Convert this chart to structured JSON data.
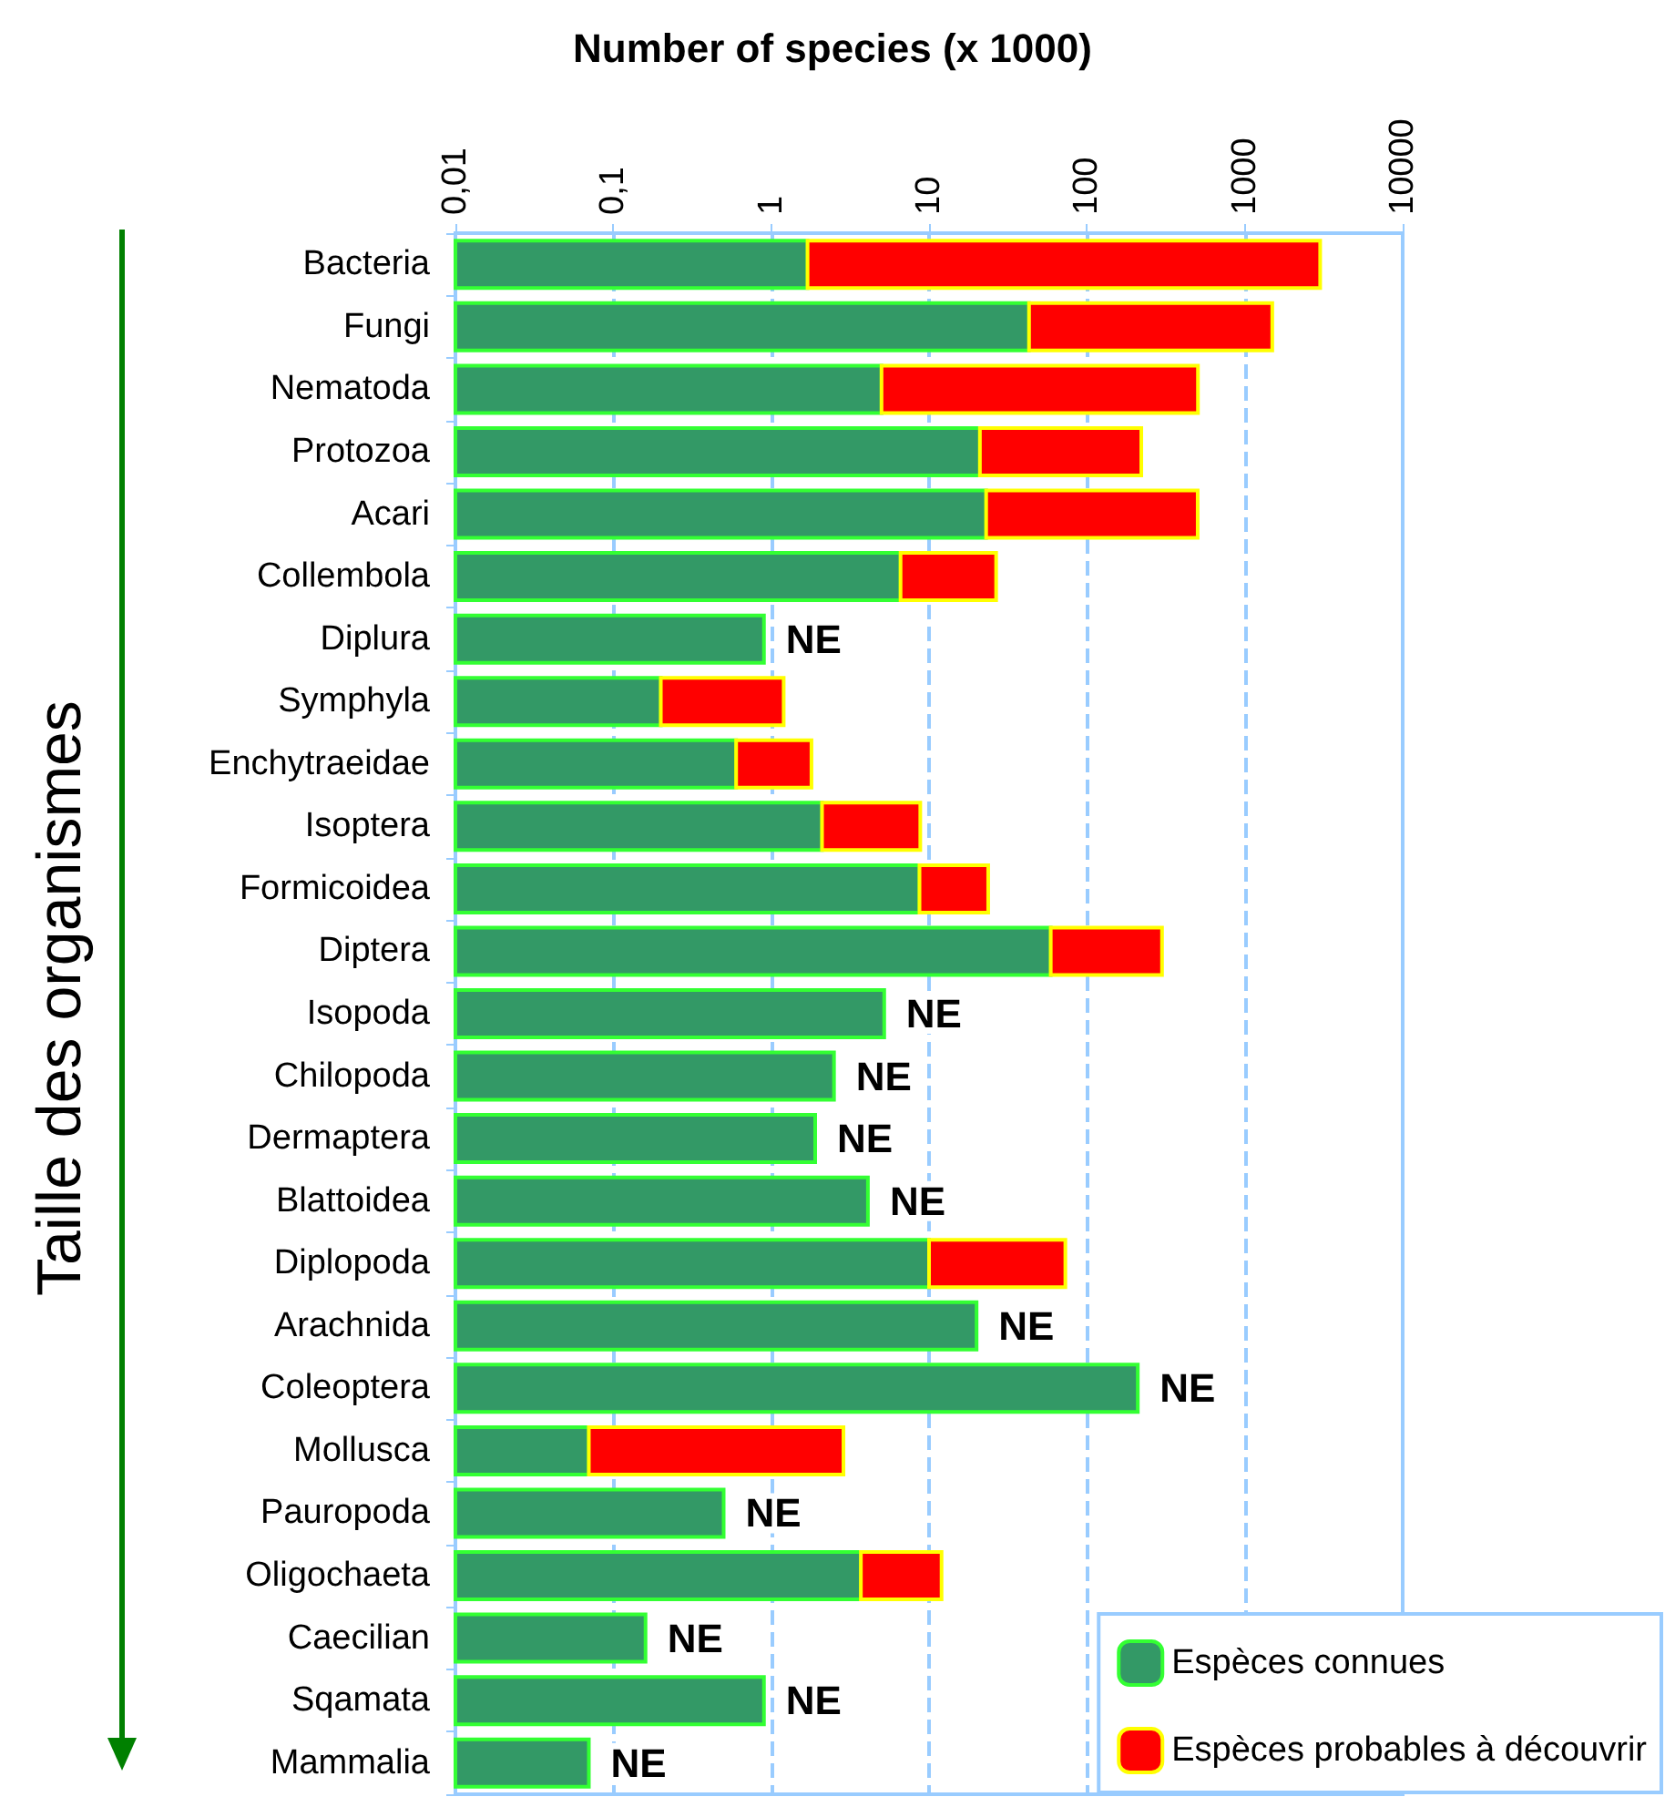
{
  "chart_data": {
    "type": "bar",
    "orientation": "horizontal",
    "stacked": true,
    "log": "x",
    "grid": "x",
    "legend": "bottom right",
    "xlabel": "Number of species (x 1000)",
    "ylabel": "Taille des organismes",
    "categories": [
      "Bacteria",
      "Fungi",
      "Nematoda",
      "Protozoa",
      "Acari",
      "Collembola",
      "Diplura",
      "Symphyla",
      "Enchytraeidae",
      "Isoptera",
      "Formicoidea",
      "Diptera",
      "Isopoda",
      "Chilopoda",
      "Dermaptera",
      "Blattoidea",
      "Diplopoda",
      "Arachnida",
      "Coleoptera",
      "Mollusca",
      "Pauropoda",
      "Oligochaeta",
      "Caecilian",
      "Sqamata",
      "Mammalia"
    ],
    "xlim": [
      0.01,
      10000
    ],
    "xticks": [
      {
        "value": 0.01,
        "label": "0,01"
      },
      {
        "value": 0.1,
        "label": "0,1"
      },
      1,
      10,
      100,
      1000,
      10000
    ],
    "series": [
      {
        "name": "Espèces connues",
        "color": "#339966",
        "values": [
          1.7,
          43,
          5,
          21,
          23,
          6.6,
          0.9,
          0.2,
          0.6,
          2.1,
          8.7,
          59,
          5.2,
          2.5,
          1.9,
          4.1,
          10,
          20,
          210,
          0.07,
          0.5,
          3.7,
          0.16,
          0.9,
          0.07
        ]
      },
      {
        "name": "Espèces probables à découvrir",
        "color": "#ff0000",
        "values": [
          3000,
          1450,
          500,
          200,
          480,
          20,
          null,
          1,
          1.2,
          6.7,
          15,
          240,
          null,
          null,
          null,
          null,
          63,
          null,
          null,
          2.8,
          null,
          8.3,
          null,
          null,
          null
        ]
      }
    ],
    "annotations": [
      {
        "text": "NE",
        "x": 0.9,
        "y": "Diplura"
      },
      {
        "text": "NE",
        "x": 5.2,
        "y": "Isopoda"
      },
      {
        "text": "NE",
        "x": 2.5,
        "y": "Chilopoda"
      },
      {
        "text": "NE",
        "x": 1.9,
        "y": "Dermaptera"
      },
      {
        "text": "NE",
        "x": 4.1,
        "y": "Blattoidea"
      },
      {
        "text": "NE",
        "x": 20,
        "y": "Arachnida"
      },
      {
        "text": "NE",
        "x": 210,
        "y": "Coleoptera"
      },
      {
        "text": "NE",
        "x": 0.5,
        "y": "Pauropoda"
      },
      {
        "text": "NE",
        "x": 0.16,
        "y": "Caecilian"
      },
      {
        "text": "NE",
        "x": 0.9,
        "y": "Sqamata"
      },
      {
        "text": "NE",
        "x": 0.07,
        "y": "Mammalia"
      }
    ]
  }
}
